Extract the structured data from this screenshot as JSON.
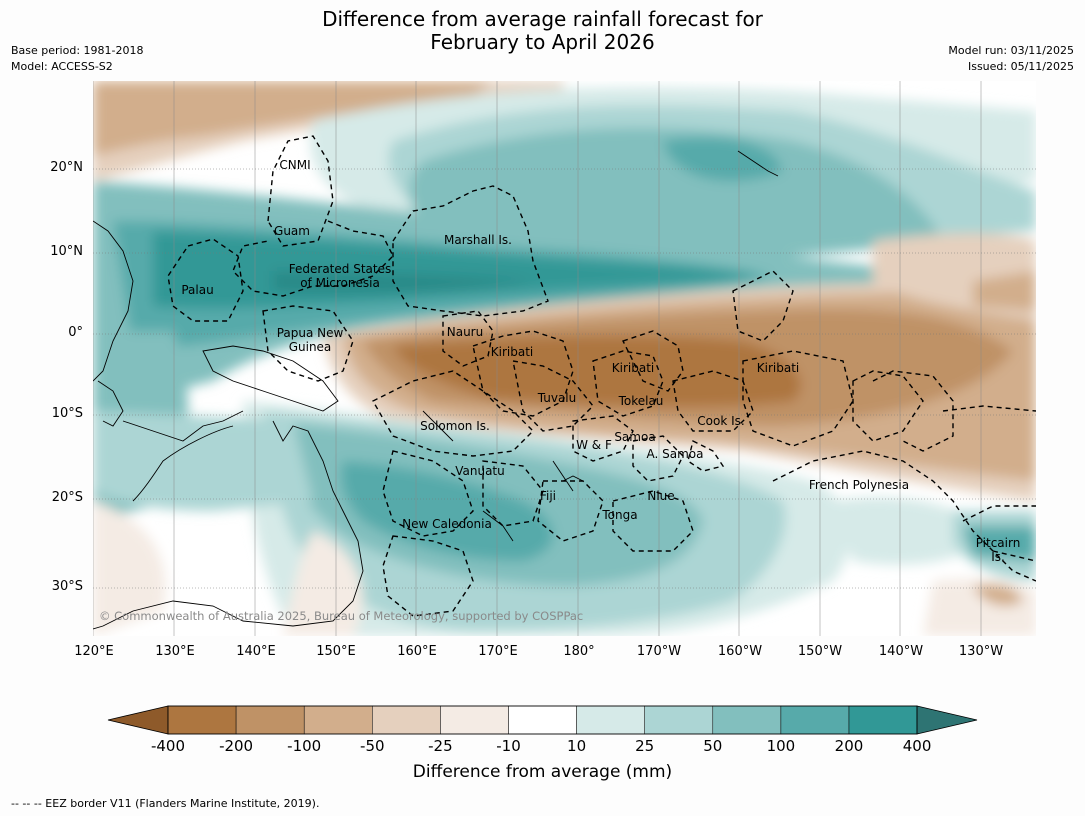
{
  "header": {
    "title_line1": "Difference from average rainfall forecast for",
    "title_line2": "February to April 2026",
    "base_period": "Base period: 1981-2018",
    "model": "Model: ACCESS-S2",
    "model_run": "Model run: 03/11/2025",
    "issued": "Issued: 05/11/2025"
  },
  "axes": {
    "lat_labels": [
      "20°N",
      "10°N",
      "0°",
      "10°S",
      "20°S",
      "30°S"
    ],
    "lon_labels": [
      "120°E",
      "130°E",
      "140°E",
      "150°E",
      "160°E",
      "170°E",
      "180°",
      "170°W",
      "160°W",
      "150°W",
      "140°W",
      "130°W"
    ]
  },
  "regions": [
    {
      "name": "CNMI"
    },
    {
      "name": "Guam"
    },
    {
      "name": "Marshall Is."
    },
    {
      "name": "Federated States\nof Micronesia"
    },
    {
      "name": "Palau"
    },
    {
      "name": "Papua New\nGuinea"
    },
    {
      "name": "Nauru"
    },
    {
      "name": "Kiribati"
    },
    {
      "name": "Kiribati"
    },
    {
      "name": "Kiribati"
    },
    {
      "name": "Tuvalu"
    },
    {
      "name": "Tokelau"
    },
    {
      "name": "Cook Is."
    },
    {
      "name": "Solomon Is."
    },
    {
      "name": "Samoa"
    },
    {
      "name": "W & F"
    },
    {
      "name": "A. Samoa"
    },
    {
      "name": "Vanuatu"
    },
    {
      "name": "Fiji"
    },
    {
      "name": "Niue"
    },
    {
      "name": "Tonga"
    },
    {
      "name": "French Polynesia"
    },
    {
      "name": "New Caledonia"
    },
    {
      "name": "Pitcairn\nIs."
    }
  ],
  "copyright": "© Commonwealth of Australia 2025, Bureau of Meteorology, supported by COSPPac",
  "colorbar": {
    "title": "Difference from average (mm)",
    "labels": [
      "-400",
      "-200",
      "-100",
      "-50",
      "-25",
      "-10",
      "10",
      "25",
      "50",
      "100",
      "200",
      "400"
    ],
    "colors": [
      "#8e5a2a",
      "#ad7640",
      "#bf9266",
      "#d2ae8c",
      "#e5d0be",
      "#f4ebe4",
      "#ffffff",
      "#d6eae8",
      "#acd5d4",
      "#82bfbe",
      "#57aaaa",
      "#319896",
      "#2e7473"
    ]
  },
  "footnote": "--  --  -- EEZ border V11 (Flanders Marine Institute, 2019)."
}
